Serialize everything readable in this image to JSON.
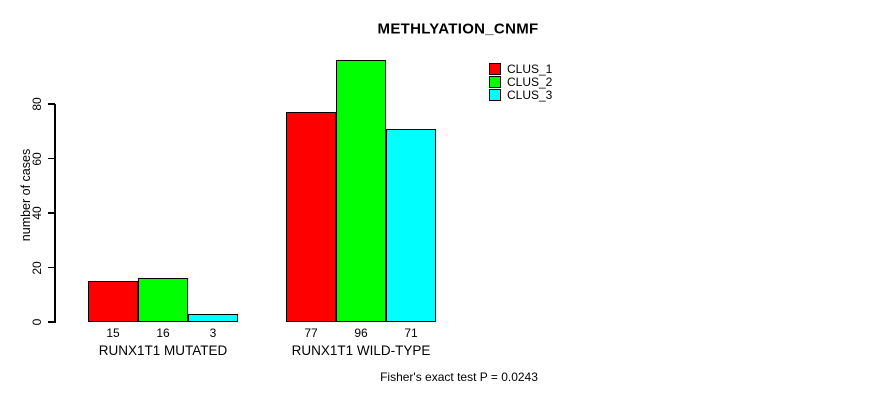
{
  "chart_data": {
    "type": "bar",
    "title": "METHLYATION_CNMF",
    "ylabel": "number of cases",
    "xlabel": "",
    "yticks": [
      0,
      20,
      40,
      60,
      80
    ],
    "ylim": [
      0,
      96
    ],
    "grid": false,
    "legend_position": "top-right",
    "bar_value_labels": true,
    "categories": [
      "RUNX1T1 MUTATED",
      "RUNX1T1 WILD-TYPE"
    ],
    "series": [
      {
        "name": "CLUS_1",
        "color": "#ff0000",
        "values": [
          15,
          77
        ]
      },
      {
        "name": "CLUS_2",
        "color": "#00ff00",
        "values": [
          16,
          96
        ]
      },
      {
        "name": "CLUS_3",
        "color": "#00ffff",
        "values": [
          3,
          71
        ]
      }
    ],
    "annotation": "Fisher's exact test P = 0.0243"
  }
}
